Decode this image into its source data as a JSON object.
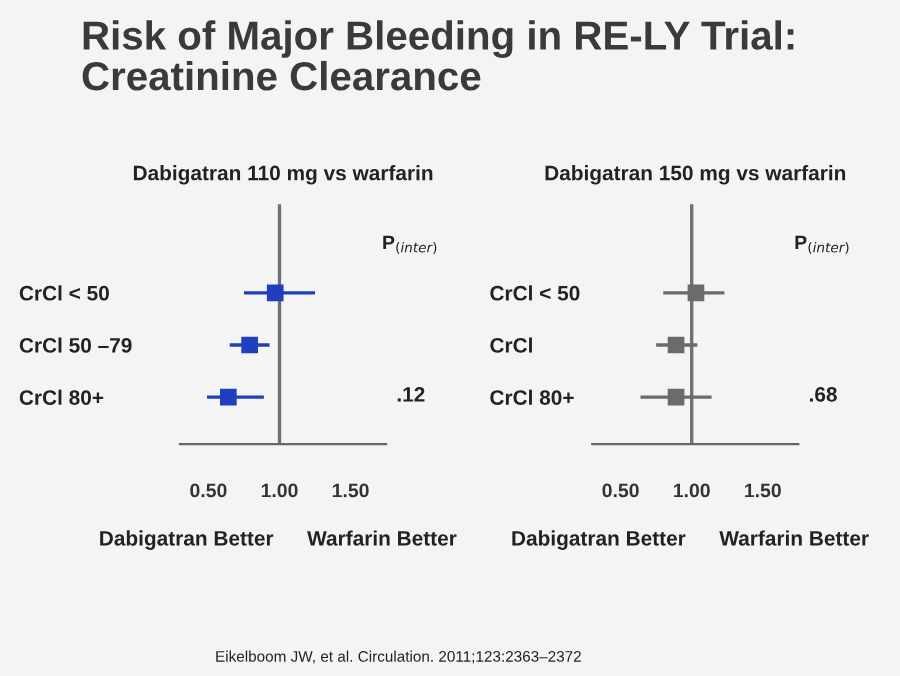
{
  "chart_data": [
    {
      "type": "scatter",
      "orientation": "horizontal",
      "title": "Risk of Major Bleeding in RE-LY Trial:\nCreatinine Clearance",
      "subtitle": "Dabigatran 110 mg vs warfarin",
      "categories": [
        "CrCl < 50",
        "CrCl 50 –79",
        "CrCl 80+"
      ],
      "color": "#1f3fbf",
      "values": [
        0.97,
        0.79,
        0.64
      ],
      "errors": [
        [
          0.75,
          1.25
        ],
        [
          0.65,
          0.93
        ],
        [
          0.49,
          0.89
        ]
      ],
      "marker": "square",
      "xlim": [
        0.3,
        1.75
      ],
      "xticks": [
        {
          "value": 0.5,
          "label": "0.50"
        },
        {
          "value": 1,
          "label": "1.00"
        },
        {
          "value": 1.5,
          "label": "1.50"
        }
      ],
      "ref_lines": [
        {
          "axis": "x",
          "value": 1,
          "color": "#6f6f6f"
        }
      ],
      "annotations": [
        "P$_{(inter)}$",
        ".12",
        "Dabigatran Better",
        "Warfarin Better"
      ]
    },
    {
      "type": "scatter",
      "orientation": "horizontal",
      "subtitle": "Dabigatran 150 mg vs warfarin",
      "categories": [
        "CrCl < 50",
        "CrCl",
        "CrCl 80+"
      ],
      "color": "#6b6b6b",
      "values": [
        1.03,
        0.89,
        0.89
      ],
      "errors": [
        [
          0.8,
          1.23
        ],
        [
          0.75,
          1.04
        ],
        [
          0.64,
          1.14
        ]
      ],
      "marker": "square",
      "xlim": [
        0.3,
        1.75
      ],
      "xticks": [
        {
          "value": 0.5,
          "label": "0.50"
        },
        {
          "value": 1,
          "label": "1.00"
        },
        {
          "value": 1.5,
          "label": "1.50"
        }
      ],
      "ref_lines": [
        {
          "axis": "x",
          "value": 1,
          "color": "#6f6f6f"
        }
      ],
      "annotations": [
        "P$_{(inter)}$",
        ".68",
        "Dabigatran Better",
        "Warfarin Better",
        "Eikelboom JW, et al. Circulation. 2011;123:2363–2372"
      ]
    }
  ]
}
